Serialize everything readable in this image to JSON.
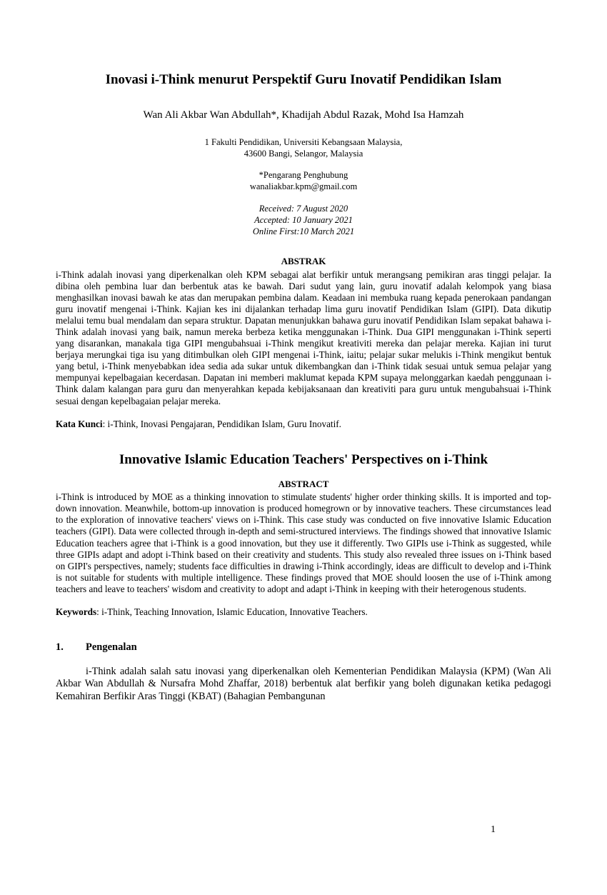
{
  "title_ms": "Inovasi i-Think menurut Perspektif Guru Inovatif Pendidikan Islam",
  "authors": "Wan Ali Akbar Wan Abdullah*, Khadijah Abdul Razak, Mohd Isa Hamzah",
  "affiliation_line1": "1 Fakulti Pendidikan, Universiti Kebangsaan Malaysia,",
  "affiliation_line2": "43600 Bangi, Selangor, Malaysia",
  "corresponding_label": "*Pengarang Penghubung",
  "corresponding_email": "wanaliakbar.kpm@gmail.com",
  "received": "Received: 7 August 2020",
  "accepted": "Accepted: 10 January 2021",
  "online_first": "Online First:10 March 2021",
  "abstrak_heading": "ABSTRAK",
  "abstrak_body": "i-Think adalah inovasi yang diperkenalkan oleh KPM sebagai alat berfikir untuk merangsang pemikiran aras tinggi pelajar. Ia dibina oleh pembina luar dan berbentuk atas ke bawah. Dari sudut yang lain, guru inovatif adalah kelompok yang biasa menghasilkan inovasi bawah ke atas dan merupakan pembina dalam. Keadaan ini membuka ruang kepada penerokaan pandangan guru inovatif mengenai i-Think. Kajian kes ini dijalankan terhadap lima guru inovatif Pendidikan Islam (GIPI). Data dikutip melalui temu bual mendalam dan separa struktur. Dapatan menunjukkan bahawa guru inovatif Pendidikan Islam sepakat bahawa i-Think adalah inovasi yang baik, namun mereka berbeza ketika menggunakan i-Think. Dua GIPI menggunakan i-Think seperti yang disarankan, manakala tiga GIPI mengubahsuai i-Think mengikut kreativiti mereka dan pelajar mereka. Kajian ini turut berjaya merungkai tiga isu yang ditimbulkan oleh GIPI mengenai i-Think, iaitu; pelajar sukar melukis i-Think mengikut bentuk yang betul, i-Think menyebabkan idea sedia ada sukar untuk dikembangkan dan i-Think tidak sesuai untuk semua pelajar yang mempunyai kepelbagaian kecerdasan. Dapatan ini memberi maklumat kepada KPM supaya melonggarkan kaedah penggunaan i-Think dalam kalangan para guru dan menyerahkan kepada kebijaksanaan dan kreativiti para guru untuk mengubahsuai i-Think sesuai dengan kepelbagaian pelajar mereka.",
  "katakunci_label": "Kata Kunci",
  "katakunci_value": ": i-Think, Inovasi Pengajaran, Pendidikan Islam, Guru Inovatif.",
  "title_en": "Innovative Islamic Education Teachers' Perspectives on i-Think",
  "abstract_heading": "ABSTRACT",
  "abstract_body": " i-Think is introduced by MOE as a thinking innovation to stimulate students' higher order thinking skills. It is imported and top-down innovation. Meanwhile, bottom-up innovation is produced homegrown or by innovative teachers. These circumstances lead to the exploration of innovative teachers' views on i-Think. This case study was conducted on five innovative Islamic Education teachers (GIPI). Data were collected through in-depth and semi-structured interviews. The findings showed that innovative Islamic Education teachers agree that i-Think is a good innovation, but they use it differently. Two GIPIs use i-Think as suggested, while three GIPIs adapt and adopt i-Think based on their creativity and students. This study also revealed three issues on i-Think based on GIPI's perspectives, namely; students face difficulties in drawing i-Think accordingly, ideas are difficult to develop and i-Think is not suitable for students with multiple intelligence. These findings proved that MOE should loosen the use of i-Think among teachers and leave to teachers' wisdom and creativity to adopt and adapt i-Think in keeping with their heterogenous students.",
  "keywords_label": "Keywords",
  "keywords_value": ": i-Think, Teaching Innovation, Islamic Education, Innovative Teachers.",
  "section1_number": "1.",
  "section1_title": "Pengenalan",
  "section1_body": "i-Think adalah salah satu inovasi yang diperkenalkan oleh Kementerian Pendidikan Malaysia (KPM) (Wan Ali Akbar Wan Abdullah & Nursafra Mohd Zhaffar, 2018) berbentuk alat berfikir yang boleh digunakan ketika pedagogi Kemahiran Berfikir Aras Tinggi (KBAT) (Bahagian Pembangunan",
  "page_number": "1"
}
